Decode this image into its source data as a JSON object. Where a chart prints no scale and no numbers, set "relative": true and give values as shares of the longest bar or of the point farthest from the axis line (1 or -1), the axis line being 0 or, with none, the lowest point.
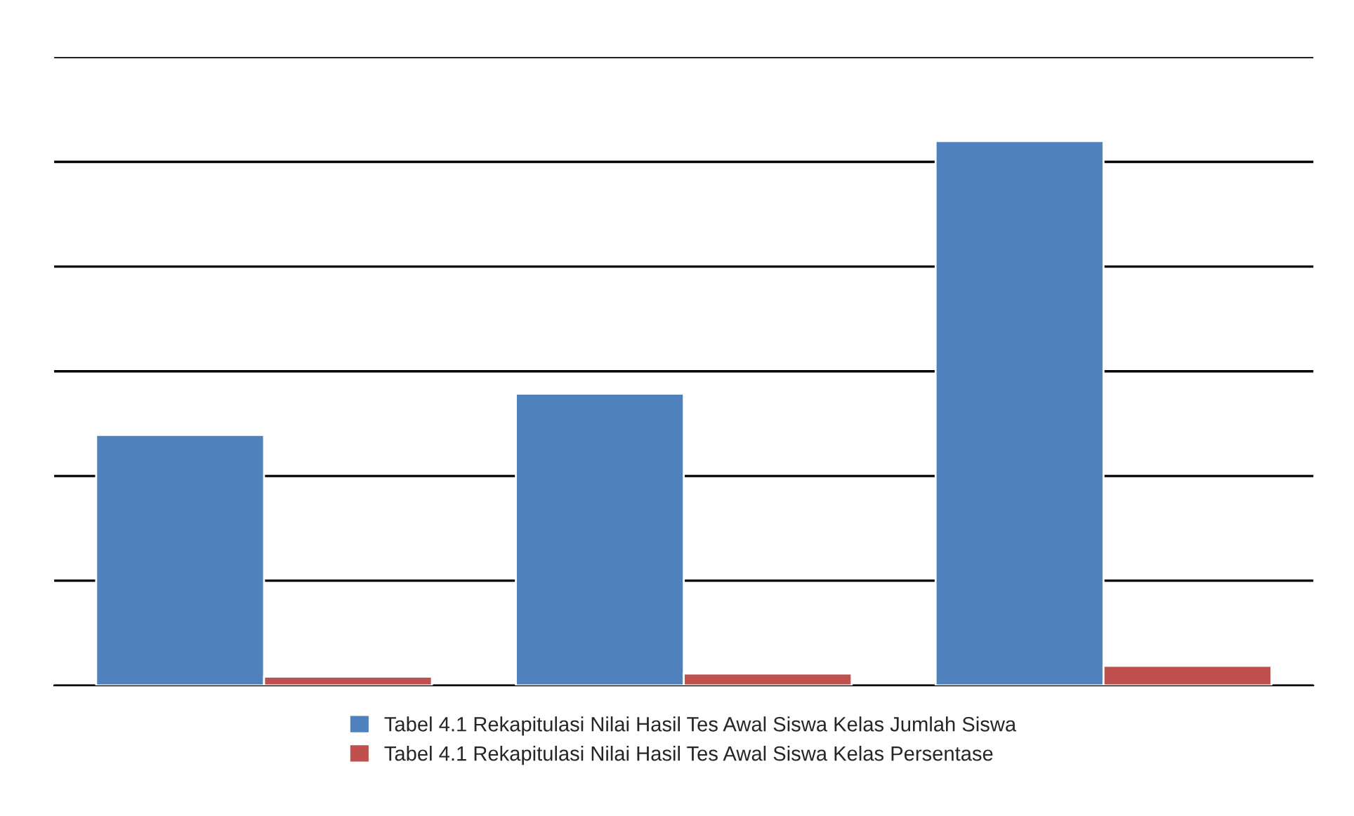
{
  "chart_data": {
    "type": "bar",
    "relative": true,
    "categories": [
      null,
      null,
      null
    ],
    "series": [
      {
        "name": "Tabel 4.1 Rekapitulasi Nilai Hasil Tes Awal Siswa Kelas Jumlah Siswa",
        "color": "#4f81bd",
        "values": [
          0.46,
          0.536,
          1
        ]
      },
      {
        "name": "Tabel 4.1 Rekapitulasi Nilai Hasil Tes Awal Siswa Kelas Persentase",
        "color": "#c0504d",
        "values": [
          0.016,
          0.022,
          0.036
        ]
      }
    ],
    "grid": "y",
    "legend": "bottom"
  }
}
